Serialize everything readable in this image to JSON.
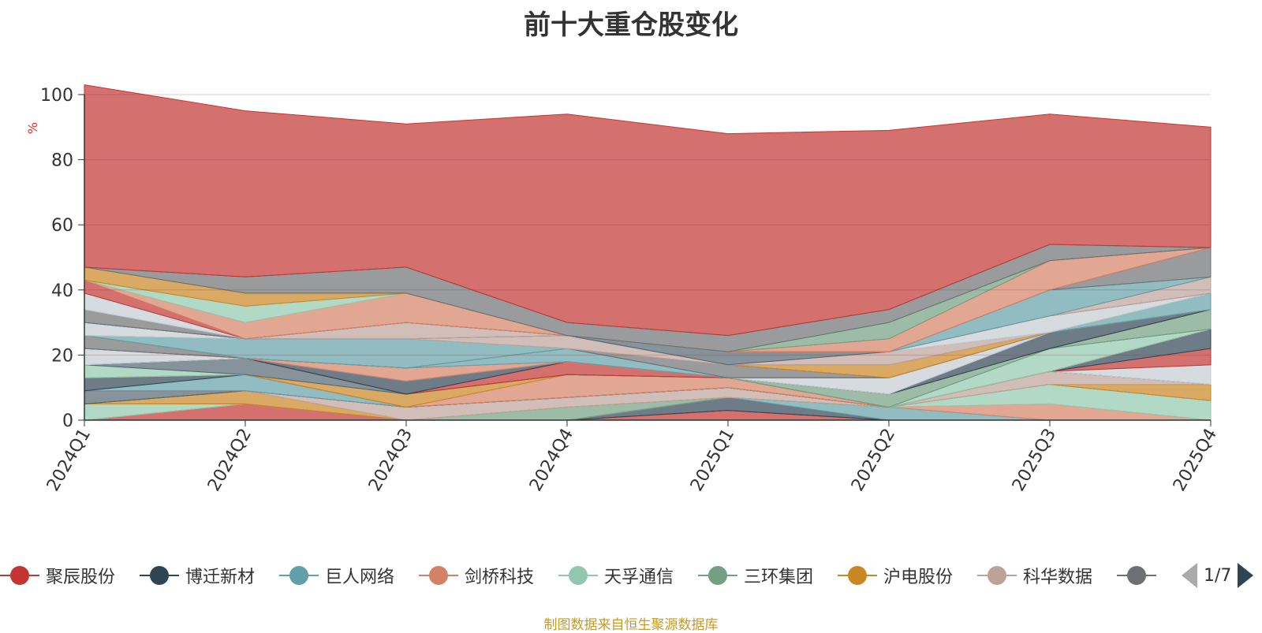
{
  "title": "前十大重仓股变化",
  "footer": "制图数据来自恒生聚源数据库",
  "pager": {
    "text": "1/7"
  },
  "chart_data": {
    "type": "area",
    "stacked": true,
    "title": "前十大重仓股变化",
    "ylabel": "%",
    "ylim": [
      0,
      100
    ],
    "yticks": [
      "0",
      "20",
      "40",
      "60",
      "80",
      "100"
    ],
    "categories": [
      "2024Q1",
      "2024Q2",
      "2024Q3",
      "2024Q4",
      "2025Q1",
      "2025Q2",
      "2025Q3",
      "2025Q4"
    ],
    "legend_position": "bottom",
    "series": [
      {
        "name": "聚辰股份",
        "color": "#c23531",
        "values": [
          0,
          5,
          0,
          0,
          3,
          0,
          0,
          0
        ]
      },
      {
        "name": "博迁新材",
        "color": "#2f4554",
        "values": [
          0,
          0,
          0,
          0,
          4,
          0,
          0,
          0
        ]
      },
      {
        "name": "巨人网络",
        "color": "#61a0a8",
        "values": [
          0,
          0,
          0,
          0,
          0,
          4,
          0,
          0
        ]
      },
      {
        "name": "剑桥科技",
        "color": "#d48265",
        "values": [
          0,
          0,
          0,
          0,
          0,
          0,
          5,
          0
        ]
      },
      {
        "name": "天孚通信",
        "color": "#91c7ae",
        "values": [
          5,
          0,
          0,
          0,
          0,
          0,
          6,
          6
        ]
      },
      {
        "name": "三环集团",
        "color": "#749f83",
        "values": [
          0,
          0,
          0,
          4,
          0,
          0,
          0,
          0
        ]
      },
      {
        "name": "沪电股份",
        "color": "#ca8622",
        "values": [
          0,
          4,
          0,
          0,
          0,
          0,
          0,
          5
        ]
      },
      {
        "name": "科华数据",
        "color": "#bda29a",
        "values": [
          0,
          0,
          4,
          3,
          3,
          0,
          4,
          0
        ]
      },
      {
        "name": "",
        "color": "#6e7074",
        "values": [
          0,
          0,
          0,
          0,
          0,
          0,
          0,
          0
        ]
      },
      {
        "name": "",
        "color": "#546570",
        "values": [
          4,
          0,
          0,
          0,
          0,
          0,
          0,
          0
        ]
      },
      {
        "name": "",
        "color": "#c4ccd3",
        "values": [
          0,
          0,
          0,
          0,
          0,
          0,
          0,
          6
        ]
      },
      {
        "name": "",
        "color": "#c23531",
        "values": [
          0,
          0,
          0,
          0,
          0,
          0,
          0,
          5
        ]
      },
      {
        "name": "",
        "color": "#61a0a8",
        "values": [
          0,
          5,
          0,
          0,
          0,
          0,
          0,
          0
        ]
      },
      {
        "name": "",
        "color": "#2f4554",
        "values": [
          4,
          0,
          0,
          0,
          0,
          0,
          0,
          6
        ]
      },
      {
        "name": "",
        "color": "#d48265",
        "values": [
          0,
          0,
          0,
          7,
          3,
          0,
          0,
          0
        ]
      },
      {
        "name": "",
        "color": "#ca8622",
        "values": [
          0,
          0,
          4,
          0,
          0,
          0,
          0,
          0
        ]
      },
      {
        "name": "",
        "color": "#91c7ae",
        "values": [
          4,
          0,
          0,
          0,
          0,
          0,
          7,
          0
        ]
      },
      {
        "name": "",
        "color": "#546570",
        "values": [
          0,
          5,
          0,
          0,
          0,
          0,
          0,
          0
        ]
      },
      {
        "name": "",
        "color": "#749f83",
        "values": [
          0,
          0,
          0,
          0,
          0,
          4,
          0,
          6
        ]
      },
      {
        "name": "",
        "color": "#c23531",
        "values": [
          0,
          0,
          0,
          4,
          0,
          0,
          0,
          0
        ]
      },
      {
        "name": "",
        "color": "#2f4554",
        "values": [
          0,
          0,
          4,
          0,
          0,
          0,
          5,
          0
        ]
      },
      {
        "name": "",
        "color": "#c4ccd3",
        "values": [
          5,
          0,
          0,
          0,
          0,
          5,
          0,
          0
        ]
      },
      {
        "name": "",
        "color": "#d48265",
        "values": [
          0,
          0,
          4,
          0,
          0,
          0,
          0,
          0
        ]
      },
      {
        "name": "",
        "color": "#61a0a8",
        "values": [
          0,
          0,
          0,
          4,
          0,
          0,
          0,
          5
        ]
      },
      {
        "name": "",
        "color": "#6e7074",
        "values": [
          4,
          0,
          0,
          0,
          4,
          0,
          0,
          0
        ]
      },
      {
        "name": "",
        "color": "#ca8622",
        "values": [
          0,
          0,
          0,
          0,
          0,
          4,
          0,
          0
        ]
      },
      {
        "name": "",
        "color": "#61a0a8",
        "values": [
          0,
          6,
          9,
          0,
          0,
          0,
          0,
          0
        ]
      },
      {
        "name": "",
        "color": "#bda29a",
        "values": [
          0,
          0,
          0,
          4,
          0,
          4,
          0,
          0
        ]
      },
      {
        "name": "",
        "color": "#749f83",
        "values": [
          0,
          0,
          0,
          0,
          0,
          0,
          0,
          0
        ]
      },
      {
        "name": "",
        "color": "#c4ccd3",
        "values": [
          4,
          0,
          0,
          0,
          0,
          0,
          5,
          0
        ]
      },
      {
        "name": "",
        "color": "#546570",
        "values": [
          0,
          0,
          0,
          0,
          4,
          0,
          0,
          0
        ]
      },
      {
        "name": "",
        "color": "#bda29a",
        "values": [
          0,
          0,
          5,
          0,
          0,
          0,
          0,
          5
        ]
      },
      {
        "name": "",
        "color": "#d48265",
        "values": [
          0,
          0,
          0,
          0,
          0,
          0,
          0,
          0
        ]
      },
      {
        "name": "",
        "color": "#61a0a8",
        "values": [
          0,
          0,
          0,
          0,
          0,
          0,
          8,
          0
        ]
      },
      {
        "name": "",
        "color": "#6e7074",
        "values": [
          4,
          0,
          0,
          0,
          0,
          0,
          0,
          9
        ]
      },
      {
        "name": "",
        "color": "#c4ccd3",
        "values": [
          5,
          0,
          0,
          0,
          0,
          0,
          0,
          0
        ]
      },
      {
        "name": "",
        "color": "#c23531",
        "values": [
          4,
          0,
          0,
          0,
          0,
          0,
          0,
          0
        ]
      },
      {
        "name": "",
        "color": "#d48265",
        "values": [
          0,
          5,
          9,
          0,
          0,
          4,
          9,
          0
        ]
      },
      {
        "name": "",
        "color": "#91c7ae",
        "values": [
          0,
          5,
          0,
          0,
          0,
          0,
          0,
          0
        ]
      },
      {
        "name": "",
        "color": "#ca8622",
        "values": [
          4,
          4,
          0,
          0,
          0,
          0,
          0,
          0
        ]
      },
      {
        "name": "",
        "color": "#749f83",
        "values": [
          0,
          0,
          0,
          0,
          0,
          5,
          0,
          0
        ]
      },
      {
        "name": "",
        "color": "#6e7074",
        "values": [
          0,
          5,
          8,
          4,
          5,
          4,
          5,
          0
        ]
      },
      {
        "name": "",
        "color": "#c23531",
        "values": [
          56,
          51,
          44,
          64,
          62,
          55,
          40,
          37
        ]
      }
    ]
  }
}
